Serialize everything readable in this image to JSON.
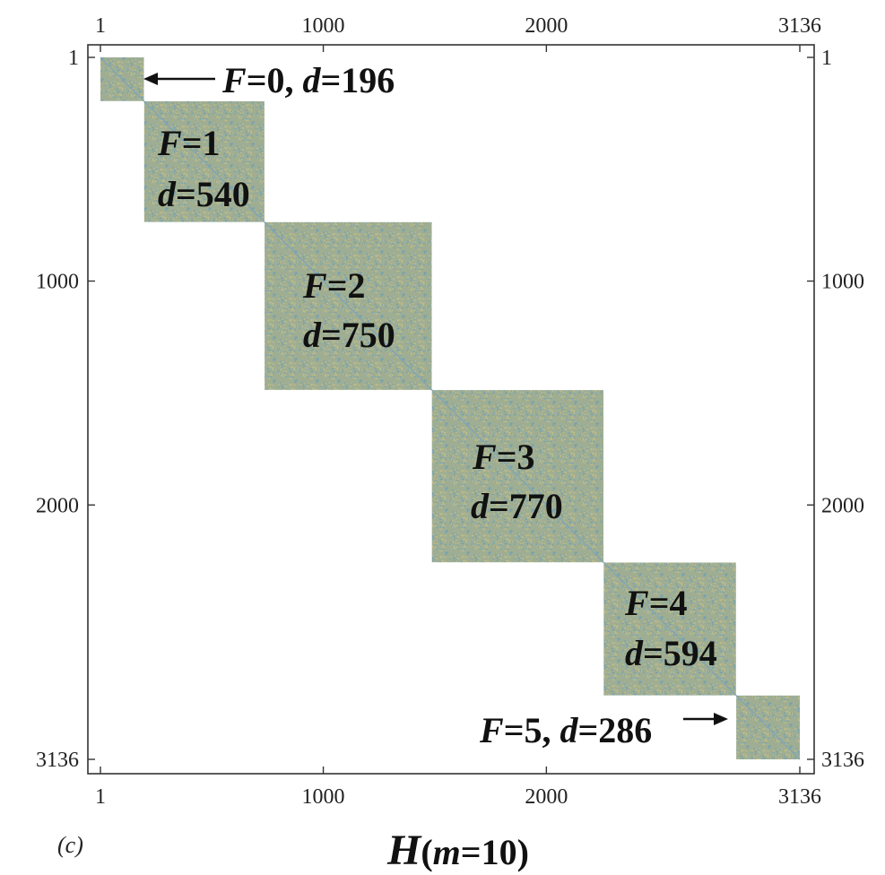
{
  "chart_data": {
    "type": "heatmap",
    "title": "",
    "xlabel": "",
    "ylabel": "",
    "xlim": [
      1,
      3136
    ],
    "ylim": [
      1,
      3136
    ],
    "x_ticks": [
      1,
      1000,
      2000,
      3136
    ],
    "y_ticks": [
      1,
      1000,
      2000,
      3136
    ],
    "x_tick_labels": [
      "1",
      "1000",
      "2000",
      "3136"
    ],
    "y_tick_labels": [
      "1",
      "1000",
      "2000",
      "3136"
    ],
    "blocks": [
      {
        "F": "0",
        "d": "196",
        "start": 1,
        "end": 196
      },
      {
        "F": "1",
        "d": "540",
        "start": 197,
        "end": 736
      },
      {
        "F": "2",
        "d": "750",
        "start": 737,
        "end": 1486
      },
      {
        "F": "3",
        "d": "770",
        "start": 1487,
        "end": 2256
      },
      {
        "F": "4",
        "d": "594",
        "start": 2257,
        "end": 2850
      },
      {
        "F": "5",
        "d": "286",
        "start": 2851,
        "end": 3136
      }
    ],
    "block_label_strings": [
      {
        "f_part": "F",
        "f_val": "=0, ",
        "d_part": "d",
        "d_val": "=196"
      },
      {
        "f_part": "F",
        "f_val": "=1",
        "d_part": "d",
        "d_val": "=540"
      },
      {
        "f_part": "F",
        "f_val": "=2",
        "d_part": "d",
        "d_val": "=750"
      },
      {
        "f_part": "F",
        "f_val": "=3",
        "d_part": "d",
        "d_val": "=770"
      },
      {
        "f_part": "F",
        "f_val": "=4",
        "d_part": "d",
        "d_val": "=594"
      },
      {
        "f_part": "F",
        "f_val": "=5, ",
        "d_part": "d",
        "d_val": "=286"
      }
    ],
    "colors": {
      "block_fill": "#9fae93",
      "speckle_blue": "#6f9fb4",
      "speckle_yellow": "#c9be82",
      "diagonal": "#7aa3bd",
      "frame": "#333333"
    },
    "grid": false,
    "panel_label": "(c)",
    "caption": {
      "H": "H",
      "open": "(",
      "m": "m",
      "eq": "=10",
      "close": ")"
    }
  }
}
